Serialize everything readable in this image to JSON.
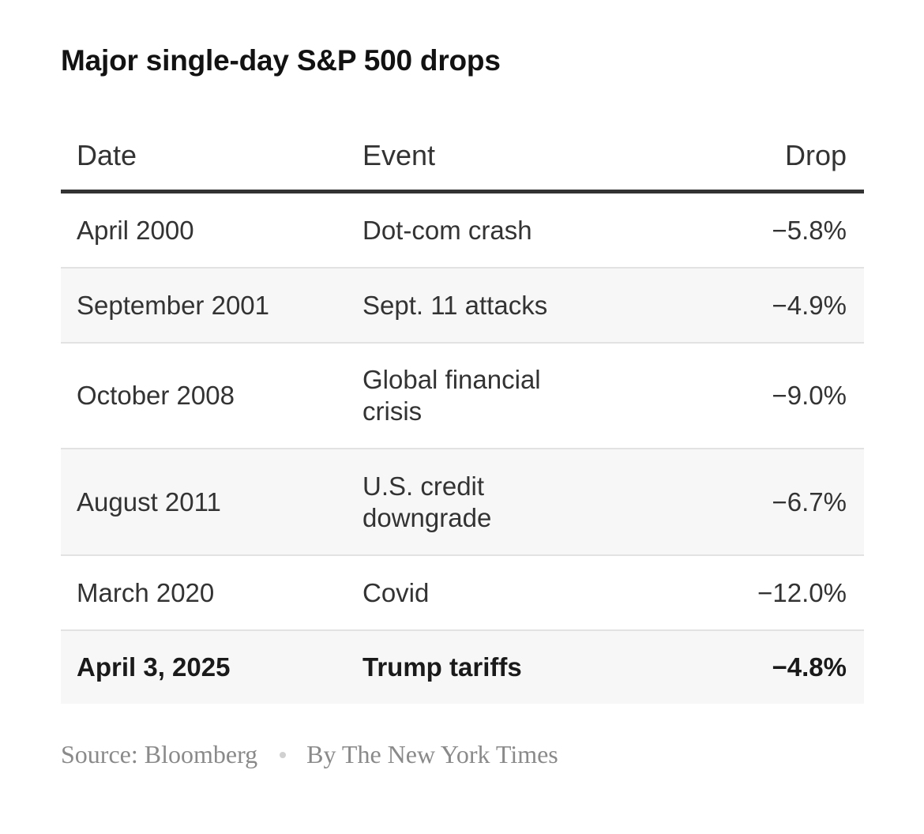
{
  "title": "Major single-day S&P 500 drops",
  "table": {
    "headers": {
      "date": "Date",
      "event": "Event",
      "drop": "Drop"
    },
    "rows": [
      {
        "date": "April 2000",
        "event": "Dot-com crash",
        "drop": "−5.8%"
      },
      {
        "date": "September 2001",
        "event": "Sept. 11 attacks",
        "drop": "−4.9%"
      },
      {
        "date": "October 2008",
        "event": "Global financial crisis",
        "drop": "−9.0%"
      },
      {
        "date": "August 2011",
        "event": "U.S. credit downgrade",
        "drop": "−6.7%"
      },
      {
        "date": "March 2020",
        "event": "Covid",
        "drop": "−12.0%"
      },
      {
        "date": "April 3, 2025",
        "event": "Trump tariffs",
        "drop": "−4.8%"
      }
    ]
  },
  "footer": {
    "source": "Source: Bloomberg",
    "byline": "By The New York Times"
  },
  "colors": {
    "title": "#121212",
    "text": "#333333",
    "row_shade": "#f7f7f7",
    "divider": "#e2e2e2",
    "footer_text": "#8a8a8a"
  }
}
